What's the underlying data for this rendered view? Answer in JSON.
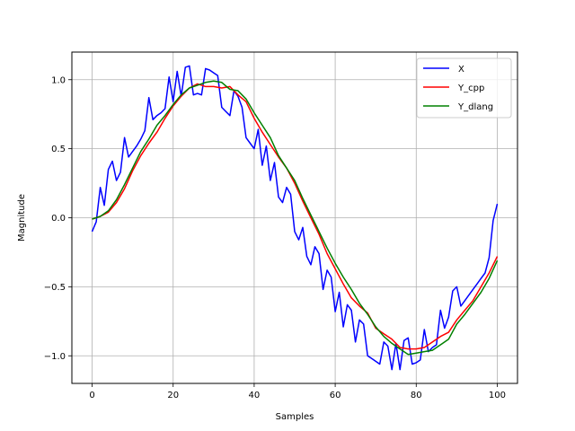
{
  "chart_data": {
    "type": "line",
    "title": "",
    "xlabel": "Samples",
    "ylabel": "Magnitude",
    "xlim": [
      -5,
      105
    ],
    "ylim": [
      -1.2,
      1.2
    ],
    "xticks": [
      0,
      20,
      40,
      60,
      80,
      100
    ],
    "yticks": [
      -1.0,
      -0.5,
      0.0,
      0.5,
      1.0
    ],
    "xtick_labels": [
      "0",
      "20",
      "40",
      "60",
      "80",
      "100"
    ],
    "ytick_labels": [
      "−1.0",
      "−0.5",
      "0.0",
      "0.5",
      "1.0"
    ],
    "grid": true,
    "legend_position": "top-right",
    "series": [
      {
        "name": "X",
        "color": "#0000ff",
        "x": [
          0,
          1,
          2,
          3,
          4,
          5,
          6,
          7,
          8,
          9,
          10,
          11,
          12,
          13,
          14,
          15,
          16,
          17,
          18,
          19,
          20,
          21,
          22,
          23,
          24,
          25,
          26,
          27,
          28,
          29,
          30,
          31,
          32,
          33,
          34,
          35,
          36,
          37,
          38,
          39,
          40,
          41,
          42,
          43,
          44,
          45,
          46,
          47,
          48,
          49,
          50,
          51,
          52,
          53,
          54,
          55,
          56,
          57,
          58,
          59,
          60,
          61,
          62,
          63,
          64,
          65,
          66,
          67,
          68,
          69,
          70,
          71,
          72,
          73,
          74,
          75,
          76,
          77,
          78,
          79,
          80,
          81,
          82,
          83,
          84,
          85,
          86,
          87,
          88,
          89,
          90,
          91,
          92,
          93,
          94,
          95,
          96,
          97,
          98,
          99,
          100
        ],
        "values": [
          -0.1,
          -0.03,
          0.22,
          0.09,
          0.35,
          0.41,
          0.27,
          0.33,
          0.58,
          0.44,
          0.48,
          0.52,
          0.57,
          0.63,
          0.87,
          0.71,
          0.74,
          0.76,
          0.79,
          1.02,
          0.84,
          1.06,
          0.88,
          1.09,
          1.1,
          0.89,
          0.9,
          0.89,
          1.08,
          1.07,
          1.05,
          1.03,
          0.8,
          0.77,
          0.74,
          0.92,
          0.88,
          0.8,
          0.58,
          0.54,
          0.5,
          0.64,
          0.38,
          0.52,
          0.27,
          0.4,
          0.15,
          0.11,
          0.22,
          0.17,
          -0.1,
          -0.16,
          -0.07,
          -0.28,
          -0.34,
          -0.21,
          -0.26,
          -0.52,
          -0.38,
          -0.43,
          -0.68,
          -0.54,
          -0.79,
          -0.63,
          -0.67,
          -0.9,
          -0.74,
          -0.77,
          -1.0,
          -1.02,
          -1.04,
          -1.06,
          -0.9,
          -0.93,
          -1.1,
          -0.91,
          -1.1,
          -0.89,
          -0.87,
          -1.06,
          -1.05,
          -1.03,
          -0.81,
          -0.97,
          -0.94,
          -0.92,
          -0.67,
          -0.8,
          -0.72,
          -0.53,
          -0.5,
          -0.64,
          -0.6,
          -0.56,
          -0.52,
          -0.48,
          -0.44,
          -0.4,
          -0.29,
          -0.02,
          0.1
        ]
      },
      {
        "name": "Y_cpp",
        "color": "#ff0000",
        "x": [
          0,
          2,
          4,
          6,
          8,
          10,
          12,
          14,
          16,
          18,
          20,
          22,
          24,
          26,
          28,
          30,
          32,
          34,
          36,
          38,
          40,
          42,
          44,
          46,
          48,
          50,
          52,
          54,
          56,
          58,
          60,
          62,
          64,
          66,
          68,
          70,
          72,
          74,
          76,
          78,
          80,
          82,
          84,
          86,
          88,
          90,
          92,
          94,
          96,
          98,
          100
        ],
        "values": [
          -0.01,
          0.01,
          0.04,
          0.11,
          0.21,
          0.34,
          0.45,
          0.54,
          0.62,
          0.72,
          0.81,
          0.88,
          0.94,
          0.97,
          0.95,
          0.95,
          0.94,
          0.95,
          0.89,
          0.84,
          0.72,
          0.62,
          0.53,
          0.44,
          0.36,
          0.25,
          0.12,
          0.0,
          -0.12,
          -0.26,
          -0.37,
          -0.48,
          -0.58,
          -0.64,
          -0.69,
          -0.8,
          -0.84,
          -0.88,
          -0.94,
          -0.95,
          -0.95,
          -0.94,
          -0.9,
          -0.86,
          -0.83,
          -0.74,
          -0.67,
          -0.6,
          -0.5,
          -0.4,
          -0.28
        ]
      },
      {
        "name": "Y_dlang",
        "color": "#008000",
        "x": [
          0,
          2,
          4,
          6,
          8,
          10,
          12,
          14,
          16,
          18,
          20,
          22,
          24,
          26,
          28,
          30,
          32,
          34,
          36,
          38,
          40,
          42,
          44,
          46,
          48,
          50,
          52,
          54,
          56,
          58,
          60,
          62,
          64,
          66,
          68,
          70,
          72,
          74,
          76,
          78,
          80,
          82,
          84,
          86,
          88,
          90,
          92,
          94,
          96,
          98,
          100
        ],
        "values": [
          -0.01,
          0.01,
          0.05,
          0.13,
          0.24,
          0.36,
          0.48,
          0.57,
          0.67,
          0.74,
          0.82,
          0.89,
          0.94,
          0.96,
          0.98,
          0.99,
          0.98,
          0.93,
          0.92,
          0.86,
          0.76,
          0.67,
          0.58,
          0.45,
          0.36,
          0.27,
          0.14,
          0.02,
          -0.1,
          -0.22,
          -0.33,
          -0.43,
          -0.52,
          -0.62,
          -0.7,
          -0.79,
          -0.86,
          -0.91,
          -0.95,
          -0.99,
          -0.98,
          -0.97,
          -0.96,
          -0.92,
          -0.88,
          -0.77,
          -0.7,
          -0.62,
          -0.54,
          -0.44,
          -0.31
        ]
      }
    ]
  }
}
